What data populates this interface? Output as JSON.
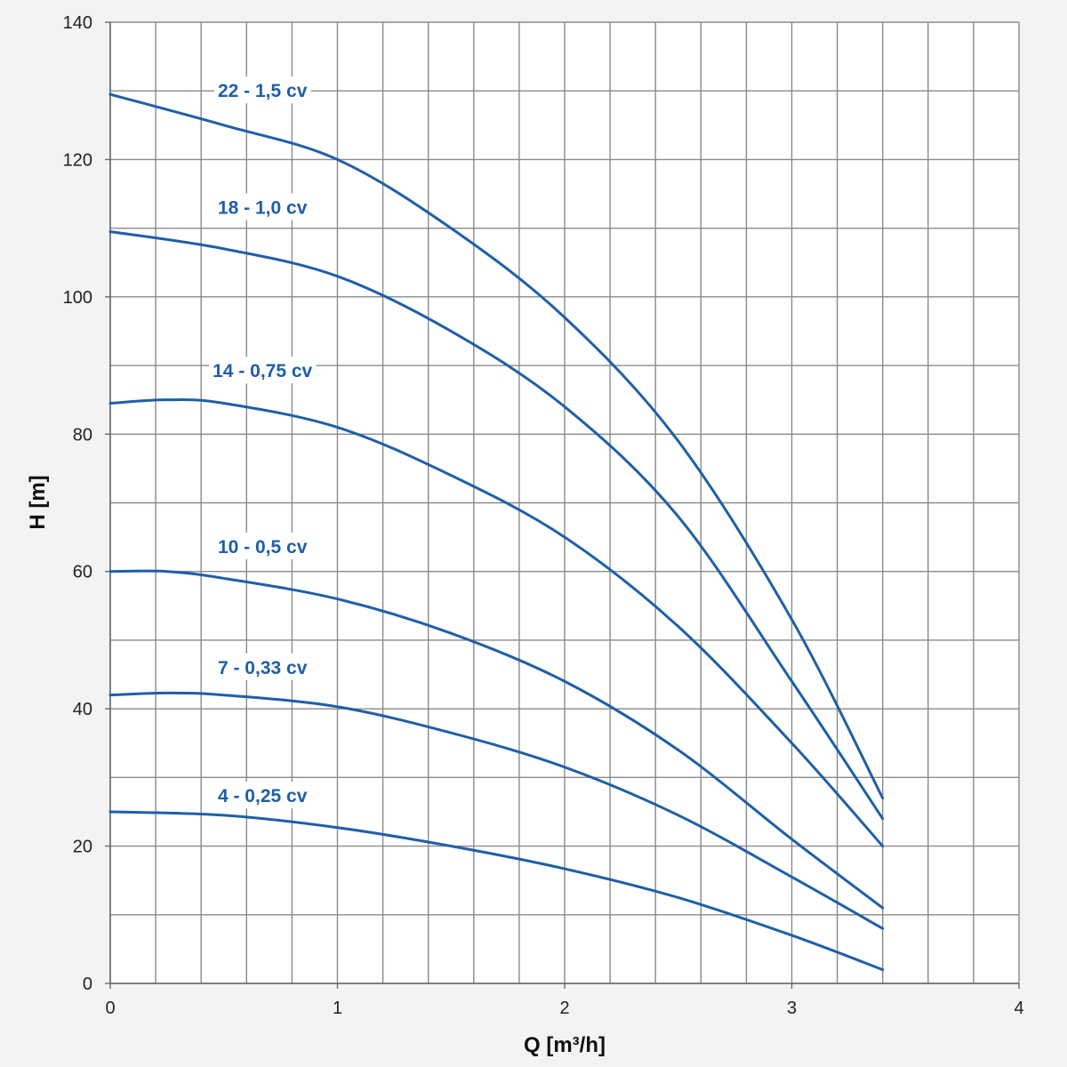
{
  "chart_data": {
    "type": "line",
    "title": "",
    "xlabel": "Q [m³/h]",
    "ylabel": "H [m]",
    "xlim": [
      0,
      4
    ],
    "ylim": [
      0,
      140
    ],
    "x_ticks": [
      0,
      1,
      2,
      3,
      4
    ],
    "y_ticks": [
      0,
      20,
      40,
      60,
      80,
      100,
      120,
      140
    ],
    "x_tick_labels": [
      "0",
      "1",
      "2",
      "3",
      "4"
    ],
    "y_tick_labels": [
      "0",
      "20",
      "40",
      "60",
      "80",
      "100",
      "120",
      "140"
    ],
    "grid": true,
    "grid_x_step": 0.2,
    "grid_y_step": 10,
    "line_color": "#1f5fa8",
    "series": [
      {
        "name": "22 - 1,5 cv",
        "x": [
          0,
          0.5,
          1,
          1.5,
          2,
          2.5,
          3,
          3.4
        ],
        "y": [
          129.5,
          125,
          120,
          110,
          97,
          79,
          53,
          27
        ]
      },
      {
        "name": "18 - 1,0 cv",
        "x": [
          0,
          0.5,
          1,
          1.5,
          2,
          2.5,
          3,
          3.4
        ],
        "y": [
          109.5,
          107,
          103,
          95,
          84,
          68,
          44,
          24
        ]
      },
      {
        "name": "14 - 0,75 cv",
        "x": [
          0,
          0.25,
          0.5,
          1,
          1.5,
          2,
          2.5,
          3,
          3.4
        ],
        "y": [
          84.5,
          85,
          84.5,
          81,
          74,
          65,
          52,
          35,
          20
        ]
      },
      {
        "name": "10 - 0,5 cv",
        "x": [
          0,
          0.25,
          0.5,
          1,
          1.5,
          2,
          2.5,
          3,
          3.4
        ],
        "y": [
          60,
          60,
          59,
          56,
          51,
          44,
          34,
          21,
          11
        ]
      },
      {
        "name": "7 - 0,33 cv",
        "x": [
          0,
          0.25,
          0.5,
          1,
          1.5,
          2,
          2.5,
          3,
          3.4
        ],
        "y": [
          42,
          42.3,
          42,
          40.3,
          36.5,
          31.5,
          24.5,
          15.5,
          8
        ]
      },
      {
        "name": "4 - 0,25 cv",
        "x": [
          0,
          0.5,
          1,
          1.5,
          2,
          2.5,
          3,
          3.4
        ],
        "y": [
          25,
          24.5,
          22.7,
          20,
          16.7,
          12.5,
          7,
          2
        ]
      }
    ],
    "label_x": [
      0.67,
      0.67,
      0.67,
      0.67,
      0.67,
      0.67
    ],
    "label_y": [
      130,
      113,
      89.2,
      63.6,
      46,
      27.3
    ]
  }
}
